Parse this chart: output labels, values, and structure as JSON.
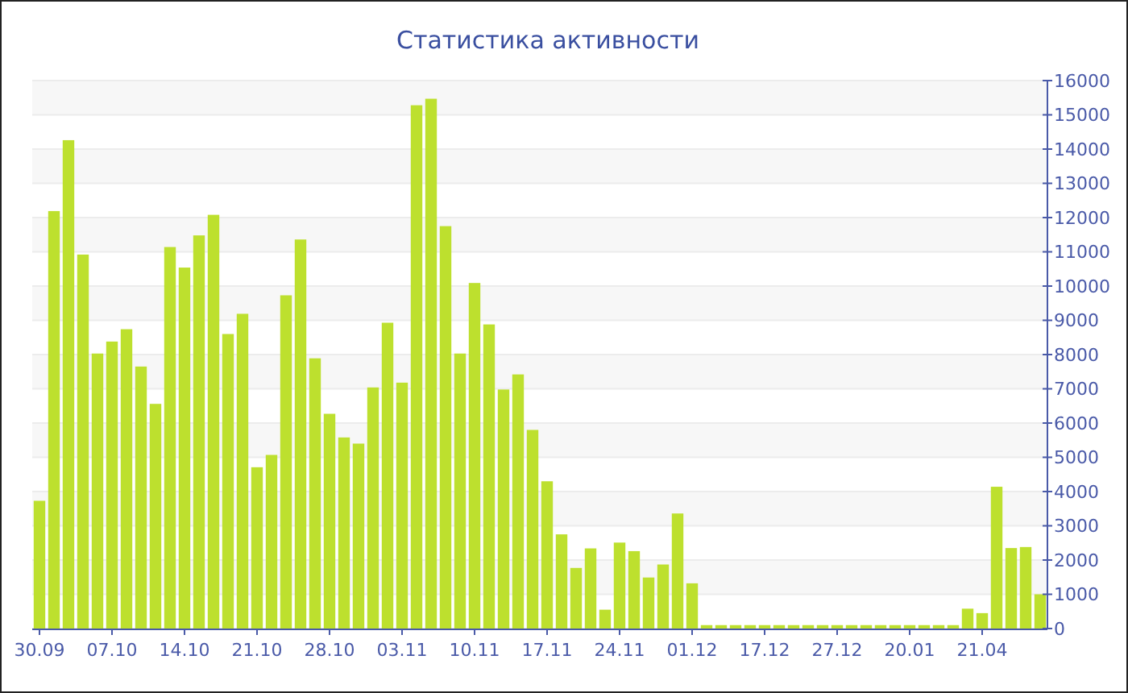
{
  "chart_data": {
    "type": "bar",
    "title": "Статистика активности",
    "categories": [
      "30.09",
      null,
      null,
      null,
      null,
      "07.10",
      null,
      null,
      null,
      null,
      "14.10",
      null,
      null,
      null,
      null,
      "21.10",
      null,
      null,
      null,
      null,
      "28.10",
      null,
      null,
      null,
      null,
      "03.11",
      null,
      null,
      null,
      null,
      "10.11",
      null,
      null,
      null,
      null,
      "17.11",
      null,
      null,
      null,
      null,
      "24.11",
      null,
      null,
      null,
      null,
      "01.12",
      null,
      null,
      null,
      null,
      "17.12",
      null,
      null,
      null,
      null,
      "27.12",
      null,
      null,
      null,
      null,
      "20.01",
      null,
      null,
      null,
      null,
      "21.04",
      null,
      null,
      null,
      null
    ],
    "values": [
      3730,
      12190,
      14260,
      10920,
      8030,
      8380,
      8740,
      7650,
      6560,
      11140,
      10540,
      11480,
      12080,
      8600,
      9190,
      4710,
      5070,
      9730,
      11360,
      7890,
      6270,
      5580,
      5400,
      7040,
      8930,
      7180,
      15280,
      15470,
      11750,
      8030,
      10090,
      8880,
      6980,
      7420,
      5800,
      4300,
      2750,
      1770,
      2340,
      550,
      2510,
      2260,
      1490,
      1870,
      3360,
      1320,
      100,
      100,
      100,
      100,
      100,
      100,
      100,
      100,
      100,
      100,
      100,
      100,
      100,
      100,
      100,
      100,
      100,
      100,
      580,
      450,
      4140,
      2350,
      2380,
      1000
    ],
    "color": "#bde02e",
    "ylim": [
      0,
      16000
    ],
    "yticks": [
      0,
      1000,
      2000,
      3000,
      4000,
      5000,
      6000,
      7000,
      8000,
      9000,
      10000,
      11000,
      12000,
      13000,
      14000,
      15000,
      16000
    ],
    "grid": "y"
  }
}
